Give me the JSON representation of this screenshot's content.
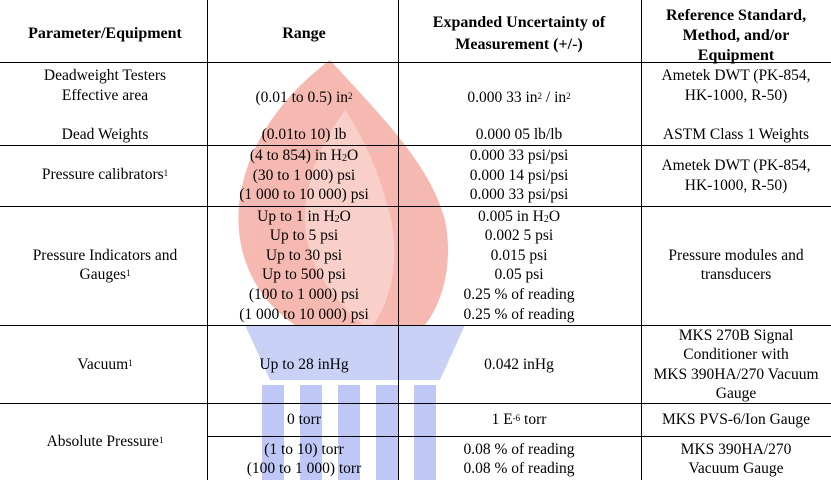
{
  "colors": {
    "watermark_red": "#f28b80",
    "watermark_blue": "#7d8ff0"
  },
  "watermark_icon": "torch-logo",
  "headers": {
    "parameter": "Parameter/Equipment",
    "range": "Range",
    "uncertainty_line1": "Expanded Uncertainty of",
    "uncertainty_line2": "Measurement (+/-)",
    "reference_line1": "Reference Standard,",
    "reference_line2": "Method, and/or",
    "reference_line3": "Equipment"
  },
  "rows": {
    "deadweight": {
      "param_line1": "Deadweight Testers",
      "param_line2": "Effective area",
      "range_1": "(0.01 to 0.5) in",
      "range_1_sup": "2",
      "unc_1_a": "0.000 33 in",
      "unc_1_sup_a": "2",
      "unc_1_b": " / in",
      "unc_1_sup_b": "2",
      "ref_line1": "Ametek DWT (PK-854,",
      "ref_line2": "HK-1000, R-50)",
      "param_weights": "Dead Weights",
      "range_2": "(0.01to 10) lb",
      "unc_2": "0.000 05 lb/lb",
      "ref_2": "ASTM Class 1 Weights"
    },
    "pressure_calibrators": {
      "param": "Pressure calibrators",
      "param_sup": "1",
      "range_1_a": "(4 to 854) in H",
      "range_1_sub": "2",
      "range_1_b": "O",
      "range_2": "(30 to 1 000) psi",
      "range_3": "(1 000 to 10 000) psi",
      "unc_1": "0.000 33 psi/psi",
      "unc_2": "0.000 14 psi/psi",
      "unc_3": "0.000 33 psi/psi",
      "ref_line1": "Ametek DWT (PK-854,",
      "ref_line2": "HK-1000, R-50)"
    },
    "indicators": {
      "param_line1": "Pressure Indicators and",
      "param_line2": "Gauges",
      "param_sup": "1",
      "range_1_a": "Up to 1 in H",
      "range_1_sub": "2",
      "range_1_b": "O",
      "range_2": "Up to 5 psi",
      "range_3": "Up to 30 psi",
      "range_4": "Up to 500 psi",
      "range_5": "(100 to 1 000) psi",
      "range_6": "(1 000 to 10 000) psi",
      "unc_1_a": "0.005 in H",
      "unc_1_sub": "2",
      "unc_1_b": "O",
      "unc_2": "0.002 5 psi",
      "unc_3": "0.015 psi",
      "unc_4": "0.05 psi",
      "unc_5": "0.25 % of reading",
      "unc_6": "0.25 % of reading",
      "ref_line1": "Pressure modules and",
      "ref_line2": "transducers"
    },
    "vacuum": {
      "param": "Vacuum",
      "param_sup": "1",
      "range": "Up to 28 inHg",
      "unc": "0.042 inHg",
      "ref_line1": "MKS 270B Signal",
      "ref_line2": "Conditioner with",
      "ref_line3": "MKS 390HA/270 Vacuum",
      "ref_line4": "Gauge"
    },
    "absolute": {
      "param": "Absolute Pressure",
      "param_sup": "1",
      "range_1": "0 torr",
      "unc_1_a": "1 E",
      "unc_1_sup": "-6",
      "unc_1_b": " torr",
      "ref_1": "MKS PVS-6/Ion Gauge",
      "range_2": "(1 to 10) torr",
      "range_3": "(100  to 1 000) torr",
      "unc_2": "0.08 % of reading",
      "unc_3": "0.08 % of reading",
      "ref_2_line1": "MKS 390HA/270",
      "ref_2_line2": "Vacuum Gauge"
    }
  }
}
